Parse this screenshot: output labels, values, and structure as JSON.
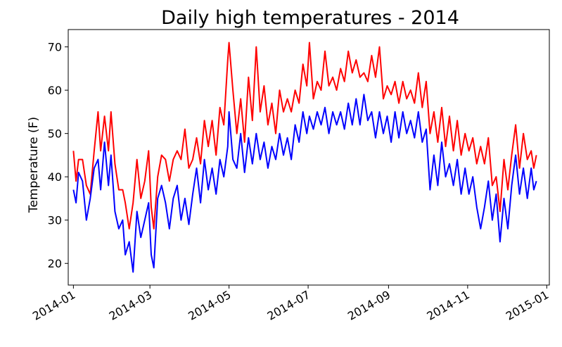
{
  "chart_data": {
    "type": "line",
    "title": "Daily high temperatures - 2014",
    "xlabel": "",
    "ylabel": "Temperature (F)",
    "x_type": "date",
    "x_ticks": [
      "2014-01",
      "2014-03",
      "2014-05",
      "2014-07",
      "2014-09",
      "2014-11",
      "2015-01"
    ],
    "x_range": [
      "2013-12-28",
      "2015-01-03"
    ],
    "y_ticks": [
      20,
      30,
      40,
      50,
      60,
      70
    ],
    "ylim": [
      15,
      74
    ],
    "grid": false,
    "legend": "none",
    "series": [
      {
        "color": "#ff0000",
        "points": [
          [
            "2014-01-01",
            46
          ],
          [
            "2014-01-03",
            39
          ],
          [
            "2014-01-05",
            44
          ],
          [
            "2014-01-08",
            44
          ],
          [
            "2014-01-11",
            38
          ],
          [
            "2014-01-14",
            36
          ],
          [
            "2014-01-17",
            46
          ],
          [
            "2014-01-20",
            55
          ],
          [
            "2014-01-22",
            46
          ],
          [
            "2014-01-25",
            54
          ],
          [
            "2014-01-28",
            46
          ],
          [
            "2014-01-30",
            55
          ],
          [
            "2014-02-02",
            43
          ],
          [
            "2014-02-05",
            37
          ],
          [
            "2014-02-08",
            37
          ],
          [
            "2014-02-10",
            34
          ],
          [
            "2014-02-13",
            28
          ],
          [
            "2014-02-16",
            34
          ],
          [
            "2014-02-19",
            44
          ],
          [
            "2014-02-22",
            35
          ],
          [
            "2014-02-25",
            39
          ],
          [
            "2014-02-28",
            46
          ],
          [
            "2014-03-02",
            33
          ],
          [
            "2014-03-04",
            28
          ],
          [
            "2014-03-07",
            40
          ],
          [
            "2014-03-10",
            45
          ],
          [
            "2014-03-13",
            44
          ],
          [
            "2014-03-16",
            39
          ],
          [
            "2014-03-19",
            44
          ],
          [
            "2014-03-22",
            46
          ],
          [
            "2014-03-25",
            44
          ],
          [
            "2014-03-28",
            51
          ],
          [
            "2014-03-31",
            42
          ],
          [
            "2014-04-03",
            44
          ],
          [
            "2014-04-06",
            49
          ],
          [
            "2014-04-09",
            43
          ],
          [
            "2014-04-12",
            53
          ],
          [
            "2014-04-15",
            47
          ],
          [
            "2014-04-18",
            53
          ],
          [
            "2014-04-21",
            45
          ],
          [
            "2014-04-24",
            56
          ],
          [
            "2014-04-27",
            52
          ],
          [
            "2014-04-30",
            67
          ],
          [
            "2014-05-01",
            71
          ],
          [
            "2014-05-04",
            60
          ],
          [
            "2014-05-07",
            50
          ],
          [
            "2014-05-10",
            58
          ],
          [
            "2014-05-13",
            48
          ],
          [
            "2014-05-16",
            63
          ],
          [
            "2014-05-19",
            53
          ],
          [
            "2014-05-22",
            70
          ],
          [
            "2014-05-25",
            55
          ],
          [
            "2014-05-28",
            61
          ],
          [
            "2014-05-31",
            52
          ],
          [
            "2014-06-03",
            57
          ],
          [
            "2014-06-06",
            50
          ],
          [
            "2014-06-09",
            60
          ],
          [
            "2014-06-12",
            55
          ],
          [
            "2014-06-15",
            58
          ],
          [
            "2014-06-18",
            55
          ],
          [
            "2014-06-21",
            60
          ],
          [
            "2014-06-24",
            57
          ],
          [
            "2014-06-27",
            66
          ],
          [
            "2014-06-30",
            61
          ],
          [
            "2014-07-02",
            71
          ],
          [
            "2014-07-05",
            58
          ],
          [
            "2014-07-08",
            62
          ],
          [
            "2014-07-11",
            60
          ],
          [
            "2014-07-14",
            69
          ],
          [
            "2014-07-17",
            61
          ],
          [
            "2014-07-20",
            63
          ],
          [
            "2014-07-23",
            60
          ],
          [
            "2014-07-26",
            65
          ],
          [
            "2014-07-29",
            62
          ],
          [
            "2014-08-01",
            69
          ],
          [
            "2014-08-04",
            64
          ],
          [
            "2014-08-07",
            67
          ],
          [
            "2014-08-10",
            63
          ],
          [
            "2014-08-13",
            64
          ],
          [
            "2014-08-16",
            62
          ],
          [
            "2014-08-19",
            68
          ],
          [
            "2014-08-22",
            63
          ],
          [
            "2014-08-25",
            70
          ],
          [
            "2014-08-28",
            58
          ],
          [
            "2014-08-31",
            61
          ],
          [
            "2014-09-03",
            59
          ],
          [
            "2014-09-06",
            62
          ],
          [
            "2014-09-09",
            57
          ],
          [
            "2014-09-12",
            62
          ],
          [
            "2014-09-15",
            58
          ],
          [
            "2014-09-18",
            60
          ],
          [
            "2014-09-21",
            57
          ],
          [
            "2014-09-24",
            64
          ],
          [
            "2014-09-27",
            56
          ],
          [
            "2014-09-30",
            62
          ],
          [
            "2014-10-03",
            50
          ],
          [
            "2014-10-06",
            55
          ],
          [
            "2014-10-09",
            48
          ],
          [
            "2014-10-12",
            56
          ],
          [
            "2014-10-15",
            47
          ],
          [
            "2014-10-18",
            54
          ],
          [
            "2014-10-21",
            46
          ],
          [
            "2014-10-24",
            53
          ],
          [
            "2014-10-27",
            45
          ],
          [
            "2014-10-30",
            50
          ],
          [
            "2014-11-02",
            46
          ],
          [
            "2014-11-05",
            49
          ],
          [
            "2014-11-08",
            43
          ],
          [
            "2014-11-11",
            47
          ],
          [
            "2014-11-14",
            43
          ],
          [
            "2014-11-17",
            49
          ],
          [
            "2014-11-20",
            38
          ],
          [
            "2014-11-23",
            40
          ],
          [
            "2014-11-26",
            32
          ],
          [
            "2014-11-29",
            44
          ],
          [
            "2014-12-02",
            37
          ],
          [
            "2014-12-05",
            45
          ],
          [
            "2014-12-08",
            52
          ],
          [
            "2014-12-11",
            42
          ],
          [
            "2014-12-14",
            50
          ],
          [
            "2014-12-17",
            44
          ],
          [
            "2014-12-20",
            46
          ],
          [
            "2014-12-22",
            42
          ],
          [
            "2014-12-24",
            45
          ]
        ]
      },
      {
        "color": "#0000ff",
        "points": [
          [
            "2014-01-01",
            37
          ],
          [
            "2014-01-03",
            34
          ],
          [
            "2014-01-05",
            41
          ],
          [
            "2014-01-08",
            39
          ],
          [
            "2014-01-11",
            30
          ],
          [
            "2014-01-14",
            35
          ],
          [
            "2014-01-17",
            42
          ],
          [
            "2014-01-20",
            44
          ],
          [
            "2014-01-22",
            37
          ],
          [
            "2014-01-25",
            48
          ],
          [
            "2014-01-28",
            38
          ],
          [
            "2014-01-30",
            45
          ],
          [
            "2014-02-02",
            32
          ],
          [
            "2014-02-05",
            28
          ],
          [
            "2014-02-08",
            30
          ],
          [
            "2014-02-10",
            22
          ],
          [
            "2014-02-13",
            25
          ],
          [
            "2014-02-16",
            18
          ],
          [
            "2014-02-19",
            32
          ],
          [
            "2014-02-22",
            26
          ],
          [
            "2014-02-25",
            30
          ],
          [
            "2014-02-28",
            34
          ],
          [
            "2014-03-02",
            22
          ],
          [
            "2014-03-04",
            19
          ],
          [
            "2014-03-07",
            35
          ],
          [
            "2014-03-10",
            38
          ],
          [
            "2014-03-13",
            34
          ],
          [
            "2014-03-16",
            28
          ],
          [
            "2014-03-19",
            35
          ],
          [
            "2014-03-22",
            38
          ],
          [
            "2014-03-25",
            30
          ],
          [
            "2014-03-28",
            35
          ],
          [
            "2014-03-31",
            29
          ],
          [
            "2014-04-03",
            36
          ],
          [
            "2014-04-06",
            42
          ],
          [
            "2014-04-09",
            34
          ],
          [
            "2014-04-12",
            44
          ],
          [
            "2014-04-15",
            37
          ],
          [
            "2014-04-18",
            42
          ],
          [
            "2014-04-21",
            36
          ],
          [
            "2014-04-24",
            44
          ],
          [
            "2014-04-27",
            40
          ],
          [
            "2014-04-30",
            47
          ],
          [
            "2014-05-01",
            55
          ],
          [
            "2014-05-04",
            44
          ],
          [
            "2014-05-07",
            42
          ],
          [
            "2014-05-10",
            50
          ],
          [
            "2014-05-13",
            41
          ],
          [
            "2014-05-16",
            49
          ],
          [
            "2014-05-19",
            43
          ],
          [
            "2014-05-22",
            50
          ],
          [
            "2014-05-25",
            44
          ],
          [
            "2014-05-28",
            48
          ],
          [
            "2014-05-31",
            42
          ],
          [
            "2014-06-03",
            47
          ],
          [
            "2014-06-06",
            44
          ],
          [
            "2014-06-09",
            50
          ],
          [
            "2014-06-12",
            45
          ],
          [
            "2014-06-15",
            49
          ],
          [
            "2014-06-18",
            44
          ],
          [
            "2014-06-21",
            52
          ],
          [
            "2014-06-24",
            48
          ],
          [
            "2014-06-27",
            55
          ],
          [
            "2014-06-30",
            50
          ],
          [
            "2014-07-02",
            54
          ],
          [
            "2014-07-05",
            51
          ],
          [
            "2014-07-08",
            55
          ],
          [
            "2014-07-11",
            52
          ],
          [
            "2014-07-14",
            56
          ],
          [
            "2014-07-17",
            50
          ],
          [
            "2014-07-20",
            55
          ],
          [
            "2014-07-23",
            52
          ],
          [
            "2014-07-26",
            55
          ],
          [
            "2014-07-29",
            51
          ],
          [
            "2014-08-01",
            57
          ],
          [
            "2014-08-04",
            52
          ],
          [
            "2014-08-07",
            58
          ],
          [
            "2014-08-10",
            52
          ],
          [
            "2014-08-13",
            59
          ],
          [
            "2014-08-16",
            53
          ],
          [
            "2014-08-19",
            55
          ],
          [
            "2014-08-22",
            49
          ],
          [
            "2014-08-25",
            55
          ],
          [
            "2014-08-28",
            50
          ],
          [
            "2014-08-31",
            54
          ],
          [
            "2014-09-03",
            48
          ],
          [
            "2014-09-06",
            55
          ],
          [
            "2014-09-09",
            49
          ],
          [
            "2014-09-12",
            55
          ],
          [
            "2014-09-15",
            50
          ],
          [
            "2014-09-18",
            53
          ],
          [
            "2014-09-21",
            49
          ],
          [
            "2014-09-24",
            55
          ],
          [
            "2014-09-27",
            48
          ],
          [
            "2014-09-30",
            51
          ],
          [
            "2014-10-03",
            37
          ],
          [
            "2014-10-06",
            45
          ],
          [
            "2014-10-09",
            38
          ],
          [
            "2014-10-12",
            48
          ],
          [
            "2014-10-15",
            40
          ],
          [
            "2014-10-18",
            43
          ],
          [
            "2014-10-21",
            38
          ],
          [
            "2014-10-24",
            44
          ],
          [
            "2014-10-27",
            36
          ],
          [
            "2014-10-30",
            42
          ],
          [
            "2014-11-02",
            36
          ],
          [
            "2014-11-05",
            40
          ],
          [
            "2014-11-08",
            33
          ],
          [
            "2014-11-11",
            28
          ],
          [
            "2014-11-14",
            33
          ],
          [
            "2014-11-17",
            39
          ],
          [
            "2014-11-20",
            30
          ],
          [
            "2014-11-23",
            36
          ],
          [
            "2014-11-26",
            25
          ],
          [
            "2014-11-29",
            35
          ],
          [
            "2014-12-02",
            28
          ],
          [
            "2014-12-05",
            38
          ],
          [
            "2014-12-08",
            45
          ],
          [
            "2014-12-11",
            36
          ],
          [
            "2014-12-14",
            42
          ],
          [
            "2014-12-17",
            35
          ],
          [
            "2014-12-20",
            42
          ],
          [
            "2014-12-22",
            37
          ],
          [
            "2014-12-24",
            39
          ]
        ]
      }
    ]
  }
}
